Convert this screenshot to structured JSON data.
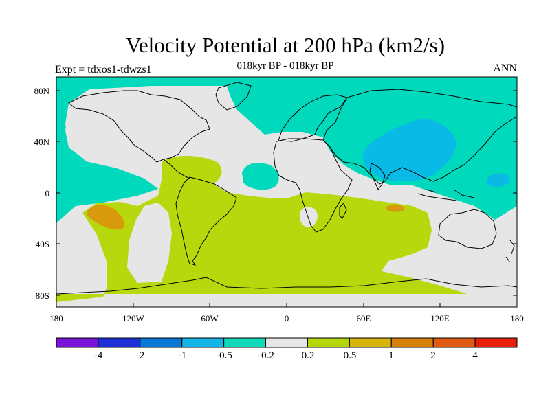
{
  "title": "Velocity Potential at 200 hPa (km2/s)",
  "subtitle": "018kyr BP - 018kyr BP",
  "left_label": "Expt = tdxos1-tdwzs1",
  "right_label": "ANN",
  "axes": {
    "y_ticks": [
      "80N",
      "40N",
      "0",
      "40S",
      "80S"
    ],
    "x_ticks": [
      "180",
      "120W",
      "60W",
      "0",
      "60E",
      "120E",
      "180"
    ]
  },
  "colorbar": {
    "colors": [
      "#7a14d6",
      "#1f2fd6",
      "#0a78d6",
      "#14b4e6",
      "#0fd9b9",
      "#e6e6e6",
      "#b4d60a",
      "#d6b40a",
      "#d6820a",
      "#e05a14",
      "#e61e0a",
      "#e60f0a"
    ],
    "labels": [
      "-4",
      "-2",
      "-1",
      "-0.5",
      "-0.2",
      "0.2",
      "0.5",
      "1",
      "2",
      "4"
    ]
  },
  "field_colors": {
    "background": "#e6e6e6",
    "cyan": "#00d9bb",
    "blue": "#0abae6",
    "green": "#b6d80c",
    "orange": "#d69a0c"
  }
}
